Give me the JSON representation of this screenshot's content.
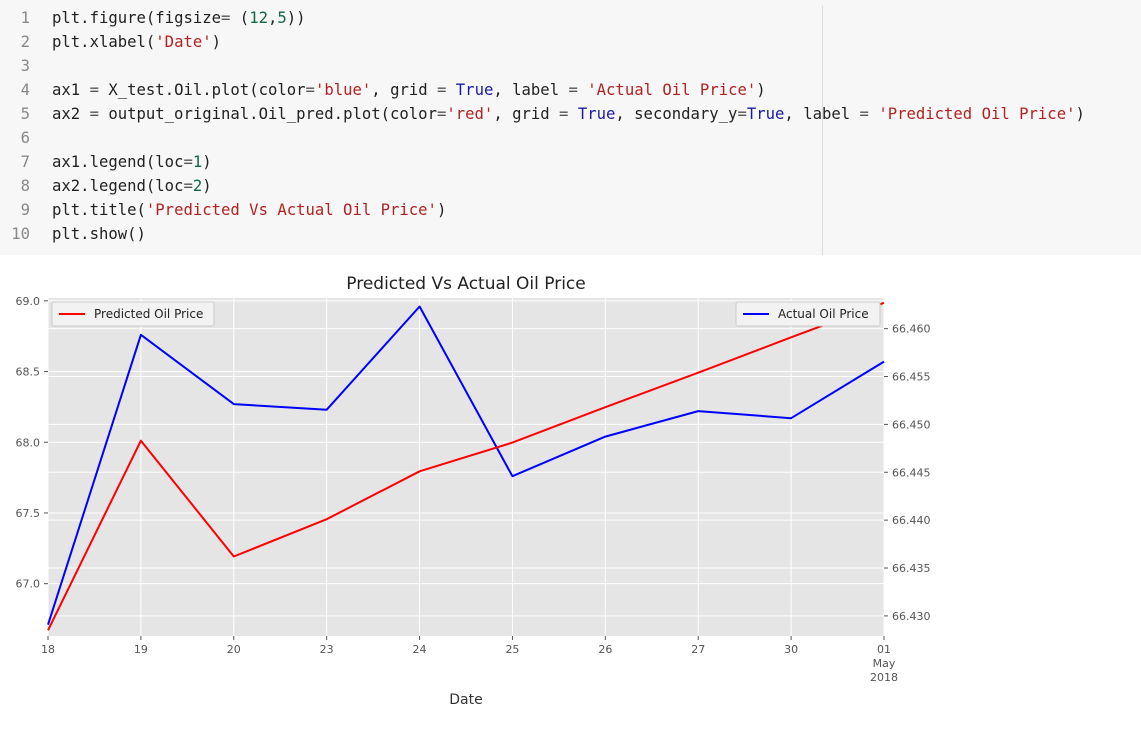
{
  "code": {
    "lines": [
      {
        "n": "1",
        "text": "plt.figure(figsize= (12,5))"
      },
      {
        "n": "2",
        "text": "plt.xlabel('Date')"
      },
      {
        "n": "3",
        "text": ""
      },
      {
        "n": "4",
        "text": "ax1 = X_test.Oil.plot(color='blue', grid = True, label = 'Actual Oil Price')"
      },
      {
        "n": "5",
        "text": "ax2 = output_original.Oil_pred.plot(color='red', grid = True, secondary_y=True, label = 'Predicted Oil Price')"
      },
      {
        "n": "6",
        "text": ""
      },
      {
        "n": "7",
        "text": "ax1.legend(loc=1)"
      },
      {
        "n": "8",
        "text": "ax2.legend(loc=2)"
      },
      {
        "n": "9",
        "text": "plt.title('Predicted Vs Actual Oil Price')"
      },
      {
        "n": "10",
        "text": "plt.show()"
      }
    ]
  },
  "chart_data": {
    "type": "line",
    "title": "Predicted Vs Actual Oil Price",
    "xlabel": "Date",
    "x": [
      "18",
      "19",
      "20",
      "23",
      "24",
      "25",
      "26",
      "27",
      "30",
      "01"
    ],
    "x_sublabel": [
      "May",
      "2018"
    ],
    "series": [
      {
        "name": "Actual Oil Price",
        "axis": "left",
        "color": "#0000ff",
        "values": [
          66.71,
          68.76,
          68.27,
          68.23,
          68.96,
          67.76,
          68.04,
          68.22,
          68.17,
          68.57
        ]
      },
      {
        "name": "Predicted Oil Price",
        "axis": "right",
        "color": "#ff0000",
        "values": [
          66.4285,
          66.4483,
          66.4362,
          66.4401,
          66.4451,
          66.4481,
          66.4518,
          66.4554,
          66.4591,
          66.4627
        ]
      }
    ],
    "left_axis": {
      "ticks": [
        "67.0",
        "67.5",
        "68.0",
        "68.5",
        "69.0"
      ],
      "ylim": [
        66.63,
        69.02
      ]
    },
    "right_axis": {
      "ticks": [
        "66.430",
        "66.435",
        "66.440",
        "66.445",
        "66.450",
        "66.455",
        "66.460"
      ],
      "ylim": [
        66.4279,
        66.4632
      ]
    },
    "legends": {
      "left": "Predicted Oil Price",
      "right": "Actual Oil Price"
    },
    "grid": true,
    "colors": {
      "plot_bg": "#e5e5e5",
      "grid": "#ffffff",
      "actual": "#0000ff",
      "predicted": "#ff0000"
    }
  }
}
